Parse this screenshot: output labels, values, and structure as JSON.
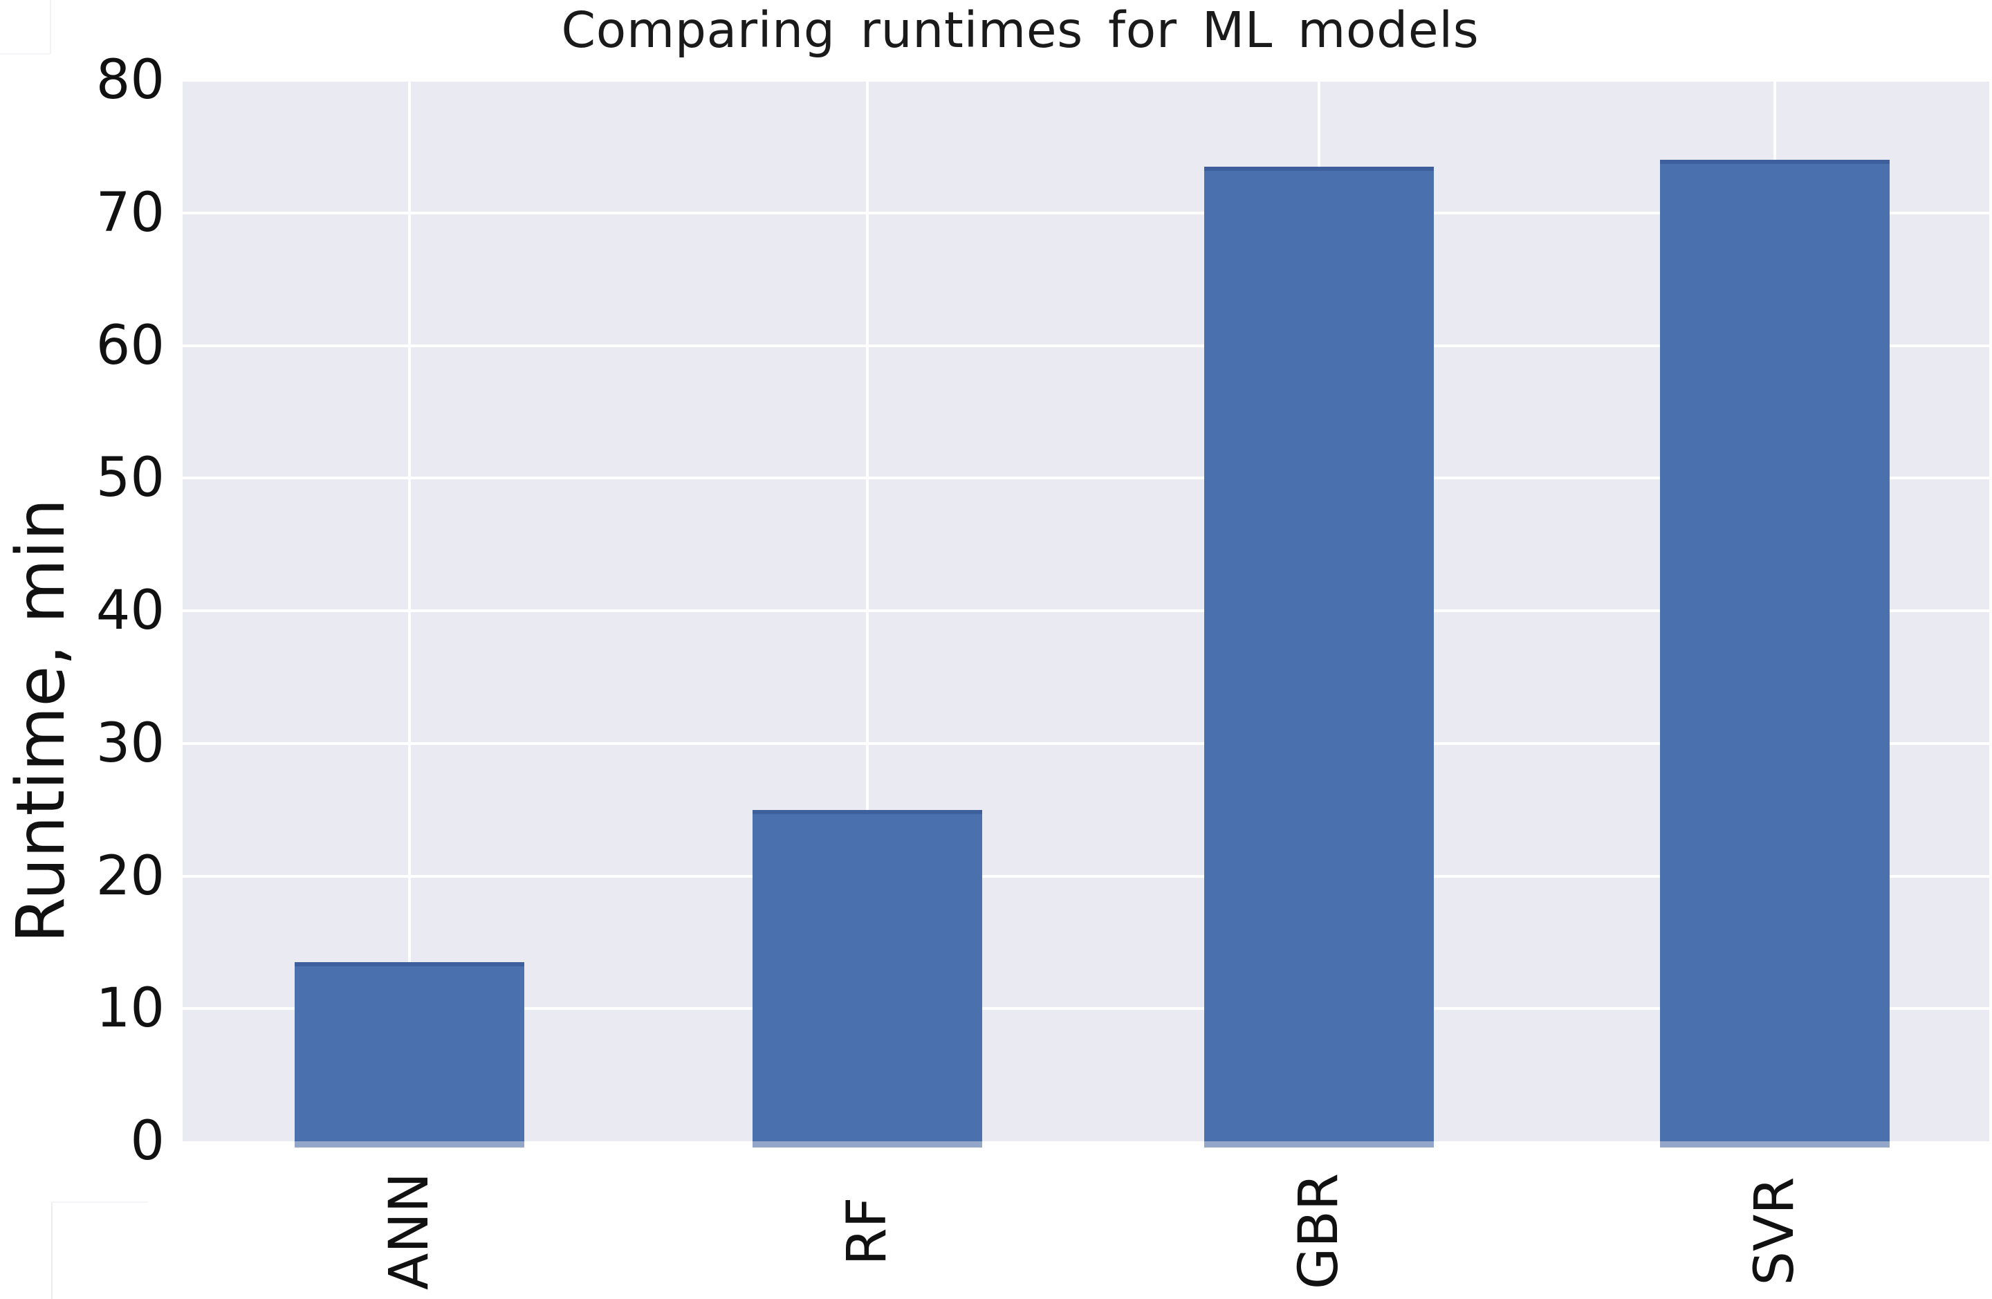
{
  "chart_data": {
    "type": "bar",
    "title": "Comparing runtimes for ML models",
    "xlabel": "",
    "ylabel": "Runtime, min",
    "categories": [
      "ANN",
      "RF",
      "GBR",
      "SVR"
    ],
    "values": [
      13.5,
      25,
      73.5,
      74
    ],
    "ylim": [
      0,
      80
    ],
    "yticks": [
      0,
      10,
      20,
      30,
      40,
      50,
      60,
      70,
      80
    ],
    "grid": true,
    "legend_position": "none",
    "bar_color": "#4a71ae",
    "bar_edge_color": "#3d5f9b",
    "plot_background": "#e9eaf2",
    "gridline_color": "#ffffff",
    "text_color": "#111111"
  }
}
